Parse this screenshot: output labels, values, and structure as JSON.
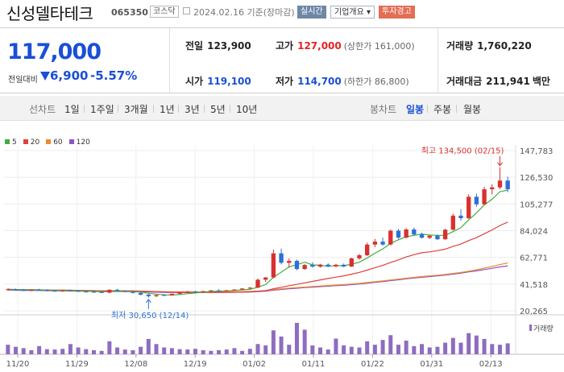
{
  "header": {
    "title": "신성델타테크",
    "code": "065350",
    "market": "코스닥",
    "date": "2024.02.16 기준(장마감)",
    "btn_realtime": "실시간",
    "btn_company": "기업개요 ▾",
    "btn_warning": "투자경고"
  },
  "price": {
    "current": "117,000",
    "change_label": "전일대비",
    "change": "6,900",
    "change_pct": "-5.57%"
  },
  "stats": {
    "prev_label": "전일",
    "prev": "123,900",
    "high_label": "고가",
    "high": "127,000",
    "high_sub": "(상한가 161,000)",
    "volume_label": "거래량",
    "volume": "1,760,220",
    "open_label": "시가",
    "open": "119,100",
    "low_label": "저가",
    "low": "114,700",
    "low_sub": "(하한가 86,800)",
    "amount_label": "거래대금",
    "amount": "211,941",
    "amount_unit": "백만"
  },
  "toolbar": {
    "line_label": "선차트",
    "periods": [
      "1일",
      "1주일",
      "3개월",
      "1년",
      "3년",
      "5년",
      "10년"
    ],
    "candle_label": "봉차트",
    "candles": [
      "일봉",
      "주봉",
      "월봉"
    ],
    "selected_candle": "일봉"
  },
  "chart_data": {
    "type": "candlestick",
    "legend": [
      {
        "name": "5",
        "color": "#3fae3f"
      },
      {
        "name": "20",
        "color": "#e04040"
      },
      {
        "name": "60",
        "color": "#f08a2c"
      },
      {
        "name": "120",
        "color": "#8b55c6"
      }
    ],
    "y_ticks": [
      "147,783",
      "126,530",
      "105,277",
      "84,024",
      "62,771",
      "41,518",
      "20,265"
    ],
    "ylim": [
      20265,
      147783
    ],
    "x_ticks": [
      "11/20",
      "11/29",
      "12/08",
      "12/19",
      "01/02",
      "01/11",
      "01/22",
      "01/31",
      "02/13"
    ],
    "volume_label": "거래량",
    "high_annotation": "최고 134,500 (02/15)",
    "low_annotation": "최저 30,650 (12/14)",
    "candles": [
      [
        37000,
        38200,
        36300,
        37400
      ],
      [
        37400,
        38000,
        36600,
        36900
      ],
      [
        36900,
        37600,
        36100,
        36600
      ],
      [
        36600,
        37300,
        35900,
        37000
      ],
      [
        37000,
        37800,
        36400,
        36800
      ],
      [
        36800,
        37400,
        35800,
        36200
      ],
      [
        36200,
        36900,
        35500,
        35900
      ],
      [
        35900,
        36700,
        35300,
        36400
      ],
      [
        36400,
        37100,
        35800,
        36100
      ],
      [
        36100,
        36800,
        35200,
        35600
      ],
      [
        35600,
        36300,
        34900,
        35400
      ],
      [
        35400,
        36100,
        34700,
        35100
      ],
      [
        35100,
        35800,
        34300,
        34700
      ],
      [
        34700,
        37400,
        34200,
        37000
      ],
      [
        37000,
        37800,
        35900,
        36000
      ],
      [
        36000,
        36600,
        35000,
        35300
      ],
      [
        35300,
        36000,
        34100,
        34500
      ],
      [
        34500,
        35100,
        32600,
        33100
      ],
      [
        33100,
        33900,
        30650,
        31900
      ],
      [
        31900,
        33200,
        31200,
        32800
      ],
      [
        32800,
        33600,
        32100,
        32600
      ],
      [
        32600,
        34000,
        32300,
        33800
      ],
      [
        33800,
        35200,
        33400,
        34900
      ],
      [
        34900,
        36100,
        34500,
        35600
      ],
      [
        35600,
        36300,
        34900,
        35200
      ],
      [
        35200,
        36200,
        34800,
        35900
      ],
      [
        35900,
        36800,
        35600,
        36500
      ],
      [
        36500,
        37400,
        35900,
        36200
      ],
      [
        36200,
        36900,
        35700,
        36600
      ],
      [
        36600,
        37500,
        36200,
        37200
      ],
      [
        37200,
        38300,
        36900,
        38000
      ],
      [
        38000,
        39100,
        37600,
        38700
      ],
      [
        38700,
        46000,
        38300,
        45000
      ],
      [
        45000,
        47200,
        43100,
        46800
      ],
      [
        46800,
        69000,
        46200,
        66000
      ],
      [
        66000,
        69800,
        57200,
        58500
      ],
      [
        58500,
        62000,
        54500,
        60000
      ],
      [
        60000,
        61000,
        52500,
        53500
      ],
      [
        53500,
        57500,
        52900,
        56700
      ],
      [
        56700,
        58900,
        54800,
        55400
      ],
      [
        55400,
        57600,
        54600,
        57000
      ],
      [
        57000,
        58000,
        55100,
        55600
      ],
      [
        55600,
        57600,
        55000,
        56900
      ],
      [
        56900,
        57900,
        55000,
        55500
      ],
      [
        55500,
        62600,
        55100,
        62000
      ],
      [
        62000,
        65500,
        60800,
        64500
      ],
      [
        64500,
        74500,
        63800,
        73000
      ],
      [
        73000,
        77500,
        70800,
        75300
      ],
      [
        75300,
        78500,
        72000,
        73000
      ],
      [
        73000,
        85000,
        72400,
        84000
      ],
      [
        84000,
        85500,
        77400,
        78500
      ],
      [
        78500,
        86000,
        77900,
        85000
      ],
      [
        85000,
        86500,
        80000,
        81000
      ],
      [
        81000,
        82500,
        77800,
        78400
      ],
      [
        78400,
        80500,
        77300,
        80000
      ],
      [
        80000,
        81000,
        76600,
        77200
      ],
      [
        77200,
        85500,
        76800,
        84800
      ],
      [
        84800,
        97500,
        84200,
        96000
      ],
      [
        96000,
        101000,
        92000,
        94000
      ],
      [
        94000,
        113000,
        93500,
        111000
      ],
      [
        111000,
        113500,
        103000,
        105000
      ],
      [
        105000,
        119000,
        104500,
        117000
      ],
      [
        117000,
        121000,
        112800,
        118500
      ],
      [
        118500,
        134500,
        117000,
        123900
      ],
      [
        123900,
        127000,
        114700,
        117000
      ]
    ],
    "volumes": [
      0.28,
      0.22,
      0.18,
      0.12,
      0.24,
      0.15,
      0.14,
      0.16,
      0.3,
      0.2,
      0.15,
      0.12,
      0.1,
      0.38,
      0.2,
      0.14,
      0.12,
      0.22,
      0.45,
      0.3,
      0.2,
      0.18,
      0.15,
      0.14,
      0.16,
      0.12,
      0.1,
      0.12,
      0.14,
      0.18,
      0.1,
      0.16,
      0.3,
      0.26,
      0.7,
      0.52,
      0.28,
      0.92,
      0.72,
      0.26,
      0.2,
      0.14,
      0.46,
      0.26,
      0.22,
      0.2,
      0.38,
      0.28,
      0.42,
      0.56,
      0.28,
      0.4,
      0.24,
      0.3,
      0.2,
      0.22,
      0.34,
      0.48,
      0.34,
      0.62,
      0.55,
      0.45,
      0.3,
      0.28,
      0.32
    ]
  }
}
